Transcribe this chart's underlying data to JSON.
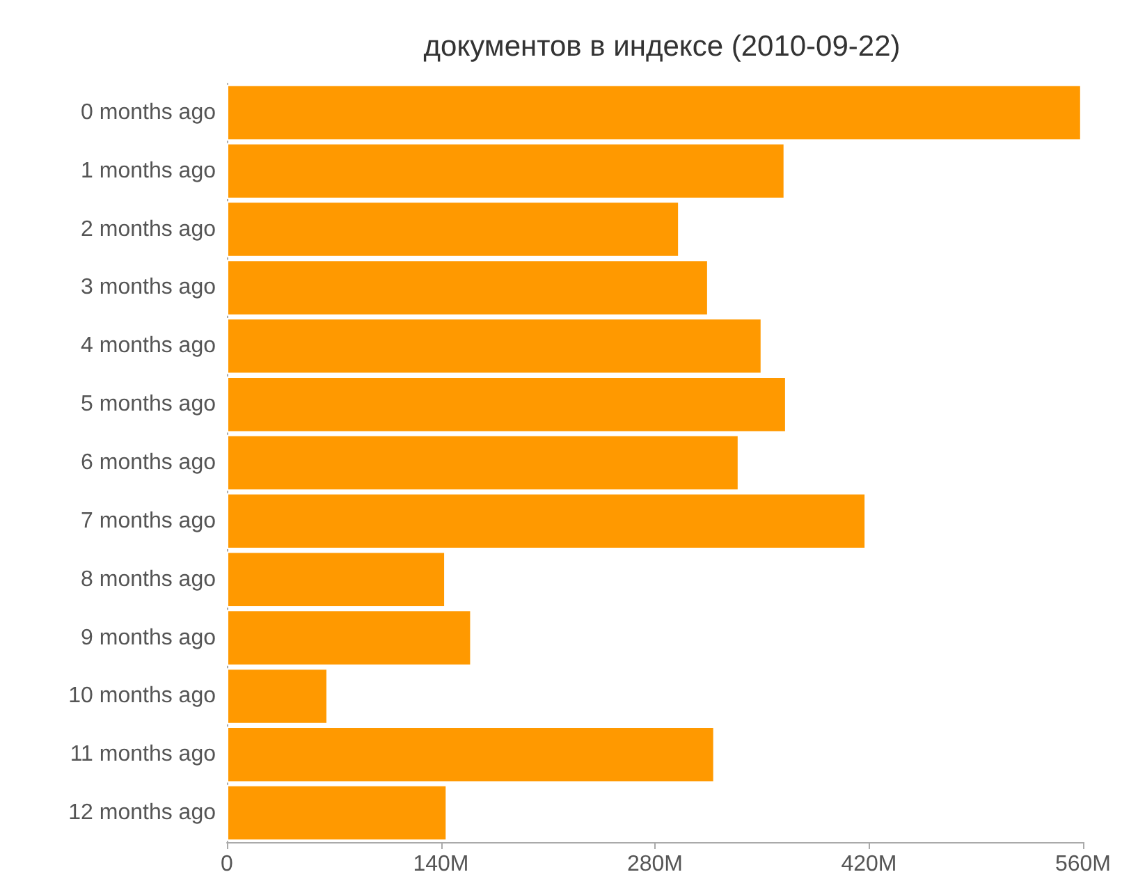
{
  "chart_data": {
    "type": "bar",
    "orientation": "horizontal",
    "title": "документов в индексе (2010-09-22)",
    "categories": [
      "0 months ago",
      "1 months ago",
      "2 months ago",
      "3 months ago",
      "4 months ago",
      "5 months ago",
      "6 months ago",
      "7 months ago",
      "8 months ago",
      "9 months ago",
      "10 months ago",
      "11 months ago",
      "12 months ago"
    ],
    "values": [
      559,
      365,
      296,
      315,
      350,
      366,
      335,
      418,
      143,
      160,
      66,
      319,
      144
    ],
    "color": "#ff9900",
    "xlim": [
      0,
      560
    ],
    "xticks": [
      0,
      {
        "value": 140,
        "label": "140M"
      },
      {
        "value": 280,
        "label": "280M"
      },
      {
        "value": 420,
        "label": "420M"
      },
      {
        "value": 560,
        "label": "560M"
      }
    ],
    "grid": false
  }
}
